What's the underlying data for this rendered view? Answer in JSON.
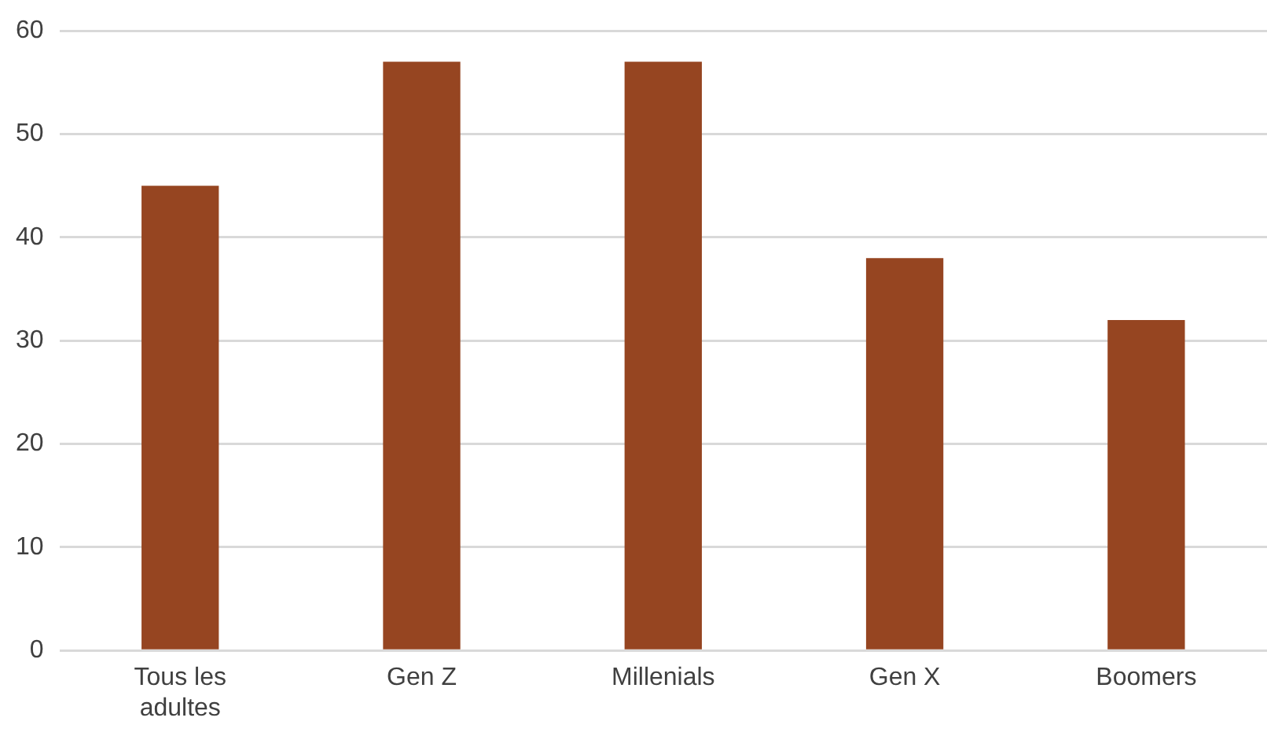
{
  "chart_data": {
    "type": "bar",
    "categories": [
      "Tous les adultes",
      "Gen Z",
      "Millenials",
      "Gen X",
      "Boomers"
    ],
    "values": [
      45,
      57,
      57,
      38,
      32
    ],
    "color": "#964521",
    "ylim": [
      0,
      60
    ],
    "yticks": [
      0,
      10,
      20,
      30,
      40,
      50,
      60
    ],
    "grid": "y"
  }
}
